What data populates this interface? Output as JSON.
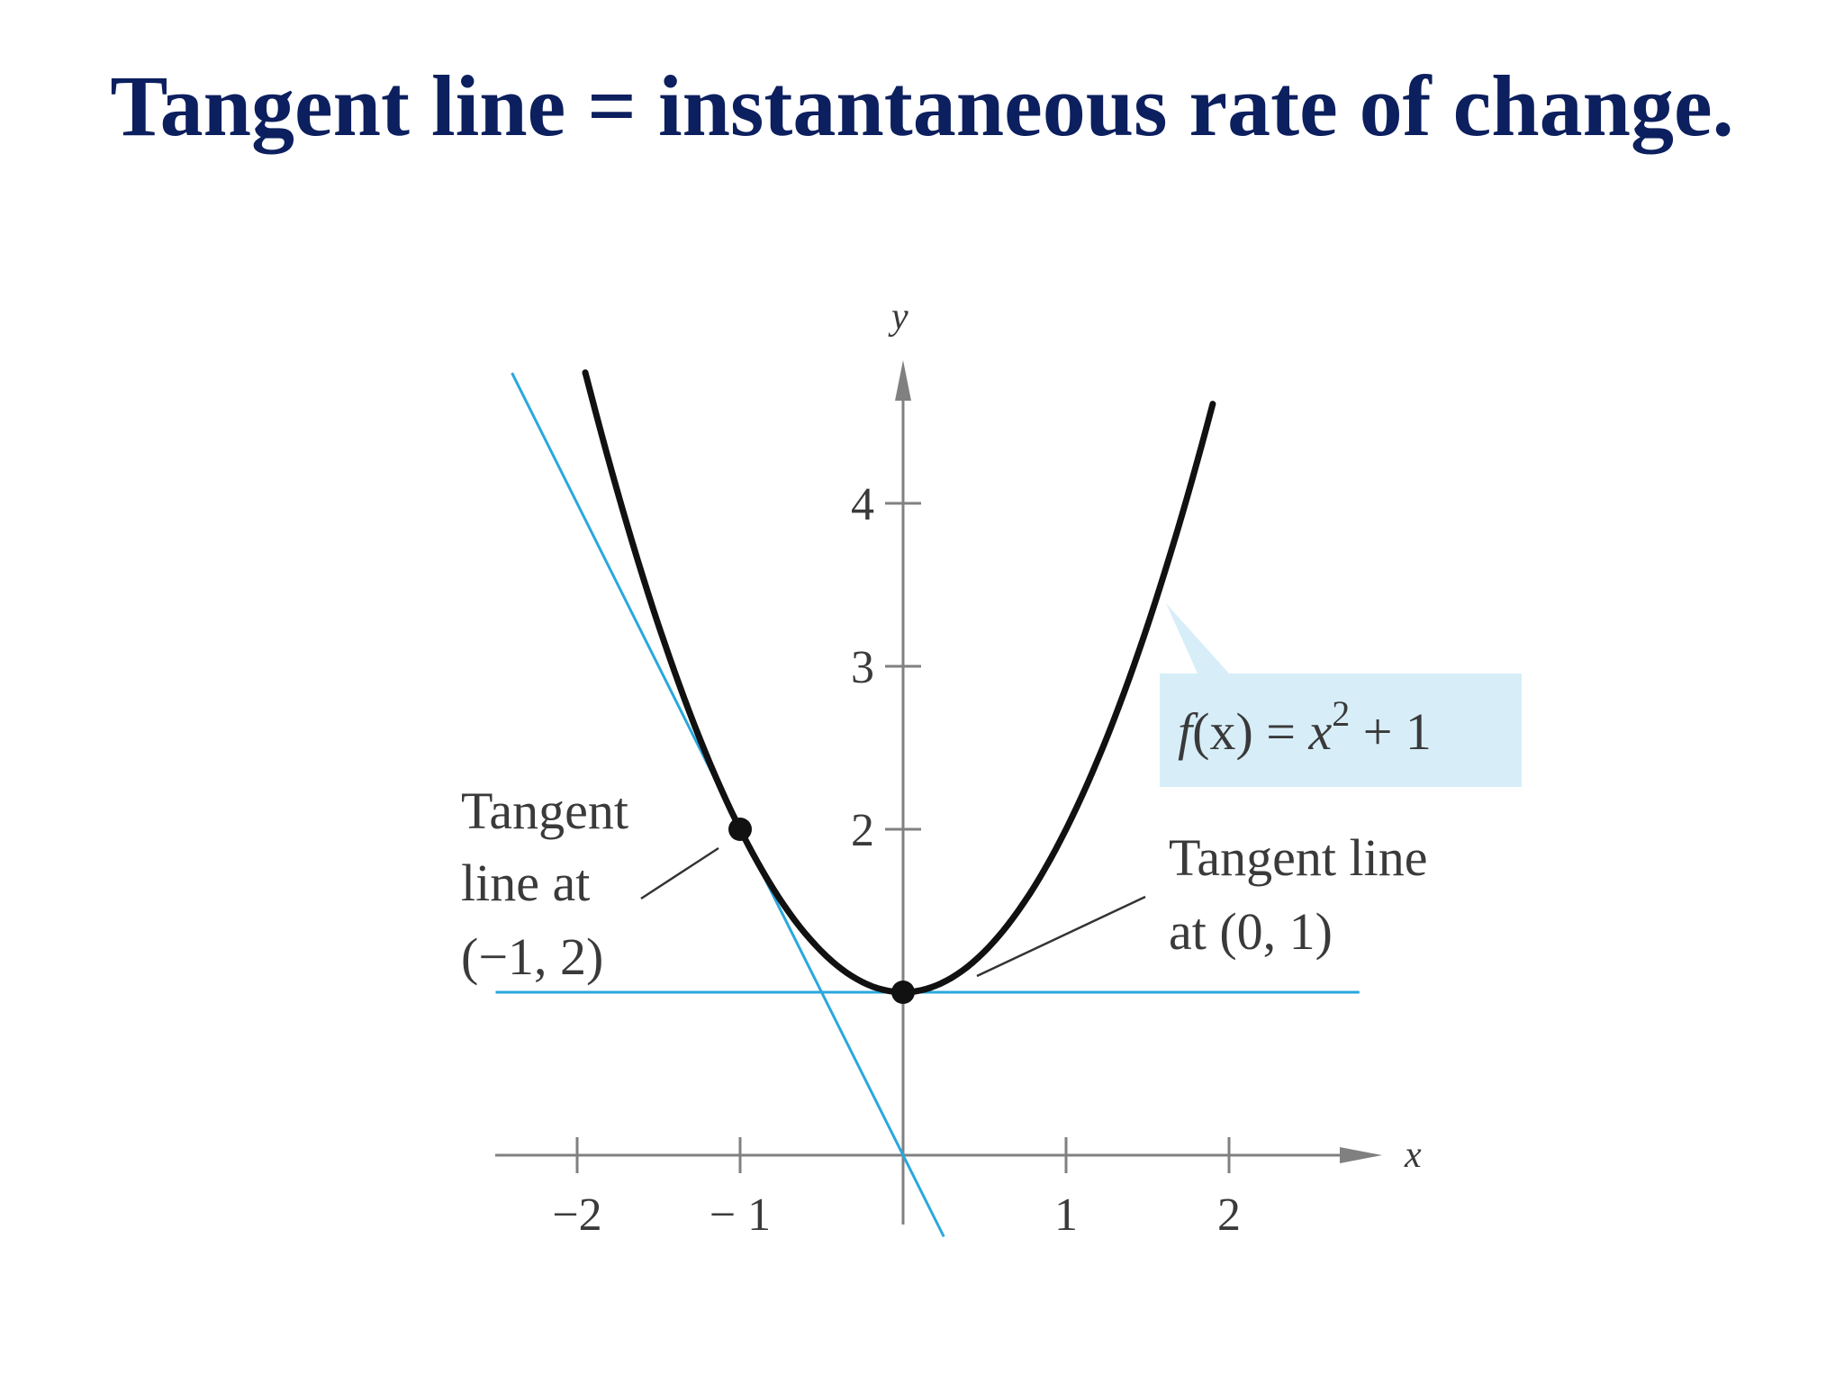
{
  "slide": {
    "title": "Tangent line = instantaneous rate of change."
  },
  "colors": {
    "title": "#0c1f5e",
    "curve": "#111111",
    "tangent": "#2aa7dd",
    "axis": "#808080",
    "label_box": "#d7eef8"
  },
  "chart_data": {
    "type": "line",
    "x_axis": {
      "label": "x",
      "range": [
        -2.5,
        3.0
      ],
      "ticks": [
        -2,
        -1,
        1,
        2
      ],
      "tick_labels": [
        "−2",
        "− 1",
        "1",
        "2"
      ]
    },
    "y_axis": {
      "label": "y",
      "range": [
        -0.5,
        5.0
      ],
      "ticks": [
        2,
        3,
        4
      ],
      "tick_labels": [
        "2",
        "3",
        "4"
      ]
    },
    "curve": {
      "label": "f(x) = x² + 1",
      "label_f": "f",
      "label_paren": "(x) = ",
      "label_x": "x",
      "label_exp": "2",
      "label_rest": " + 1",
      "x_from": -1.95,
      "x_to": 1.9
    },
    "tangents": [
      {
        "point": [
          -1,
          2
        ],
        "slope": -2,
        "x_from": -2.4,
        "x_to": 0.25,
        "annotation_lines": [
          "Tangent",
          "line at",
          "(−1, 2)"
        ]
      },
      {
        "point": [
          0,
          1
        ],
        "slope": 0,
        "x_from": -2.5,
        "x_to": 2.8,
        "annotation_lines": [
          "Tangent line",
          "at (0, 1)"
        ]
      }
    ],
    "points": [
      [
        -1,
        2
      ],
      [
        0,
        1
      ]
    ]
  }
}
